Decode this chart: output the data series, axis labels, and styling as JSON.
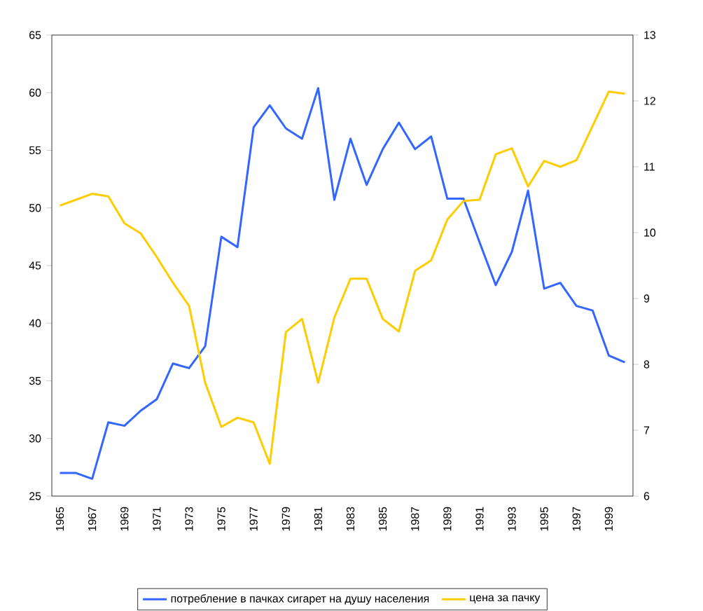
{
  "chart_data": {
    "type": "line",
    "categories": [
      "1965",
      null,
      "1967",
      null,
      "1969",
      null,
      "1971",
      null,
      "1973",
      null,
      "1975",
      null,
      "1977",
      null,
      "1979",
      null,
      "1981",
      null,
      "1983",
      null,
      "1985",
      null,
      "1987",
      null,
      "1989",
      null,
      "1991",
      null,
      "1993",
      null,
      "1995",
      null,
      "1997",
      null,
      "1999",
      null
    ],
    "series": [
      {
        "name": "потребление в пачках сигарет на душу населения",
        "color": "#3366ff",
        "values": [
          27.0,
          27.0,
          26.5,
          31.4,
          31.1,
          32.4,
          33.4,
          36.5,
          36.1,
          38.0,
          47.5,
          46.6,
          57.0,
          58.9,
          56.9,
          56.0,
          60.4,
          50.7,
          56.0,
          52.0,
          55.1,
          57.4,
          55.1,
          56.2,
          50.8,
          50.8,
          47.0,
          43.3,
          46.2,
          51.5,
          43.0,
          43.5,
          41.5,
          41.1,
          37.2,
          36.6
        ]
      },
      {
        "name": "цена за пачку",
        "color": "#ffcc00",
        "axis": "y2",
        "values": [
          10.41,
          10.5,
          10.59,
          10.55,
          10.14,
          9.99,
          9.63,
          9.24,
          8.89,
          7.72,
          7.05,
          7.19,
          7.12,
          6.49,
          8.49,
          8.69,
          7.72,
          8.71,
          9.3,
          9.3,
          8.69,
          8.5,
          9.42,
          9.58,
          10.2,
          10.48,
          10.5,
          11.19,
          11.28,
          10.7,
          11.09,
          11.0,
          11.1,
          11.62,
          12.14,
          12.11
        ]
      }
    ],
    "ylim": [
      25,
      65
    ],
    "yticks": [
      25,
      30,
      35,
      40,
      45,
      50,
      55,
      60,
      65
    ],
    "y2lim": [
      6,
      13
    ],
    "y2ticks": [
      6,
      7,
      8,
      9,
      10,
      11,
      12,
      13
    ],
    "legend": "bottom"
  }
}
